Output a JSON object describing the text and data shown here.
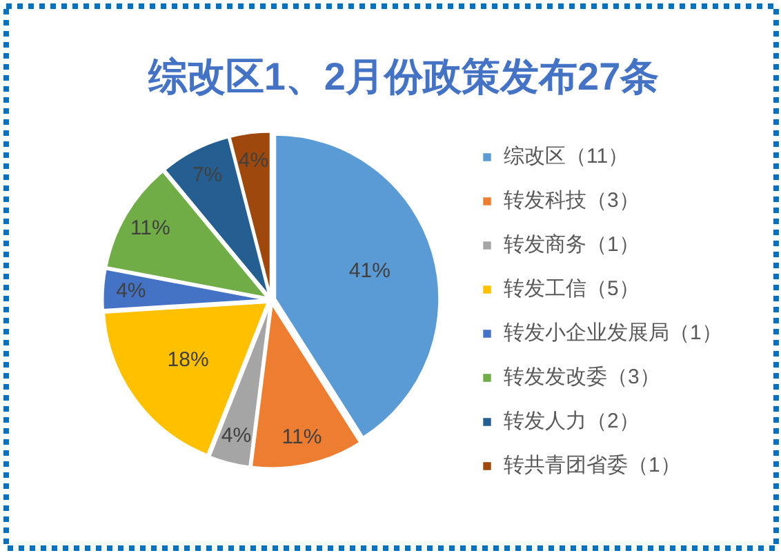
{
  "chart_data": {
    "type": "pie",
    "title": "综改区1、2月份政策发布27条",
    "categories": [
      "综改区（11）",
      "转发科技（3）",
      "转发商务（1）",
      "转发工信（5）",
      "转发小企业发展局（1）",
      "转发发改委（3）",
      "转发人力（2）",
      "转共青团省委（1）"
    ],
    "values": [
      41,
      11,
      4,
      18,
      4,
      11,
      7,
      4
    ],
    "value_labels": [
      "41%",
      "11%",
      "4%",
      "18%",
      "4%",
      "11%",
      "7%",
      "4%"
    ],
    "colors": [
      "#5b9bd5",
      "#ed7d31",
      "#a5a5a5",
      "#ffc000",
      "#4472c4",
      "#70ad47",
      "#255e91",
      "#9e480e"
    ],
    "legend": "right"
  }
}
